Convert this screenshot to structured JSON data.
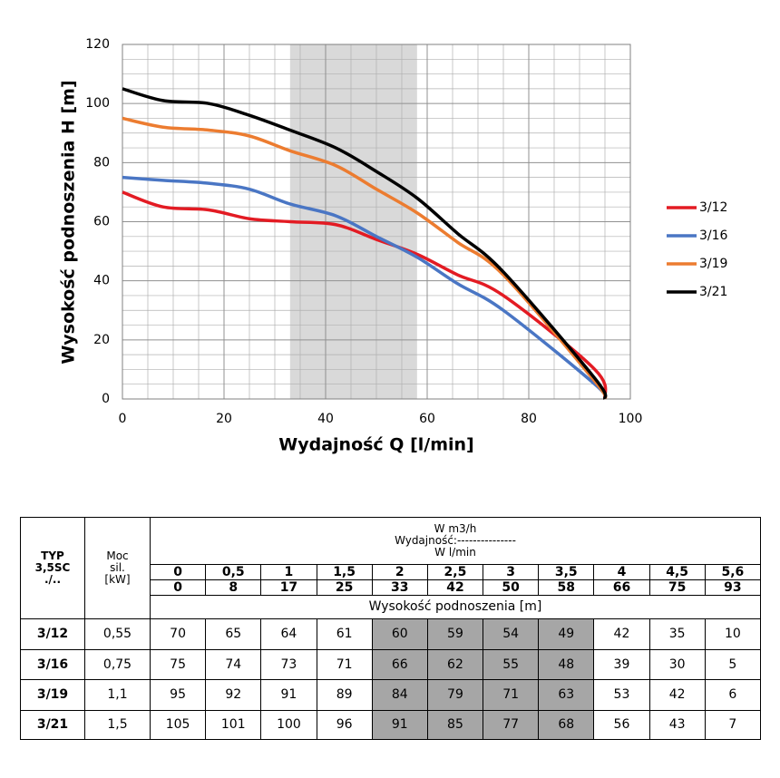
{
  "chart_data": {
    "type": "line",
    "x_label": "Wydajność Q [l/min]",
    "y_label": "Wysokość podnoszenia H [m]",
    "x": [
      0,
      8,
      17,
      25,
      33,
      42,
      50,
      58,
      66,
      75,
      93,
      95
    ],
    "series": [
      {
        "name": "3/12",
        "color": "#e31b23",
        "values": [
          70,
          65,
          64,
          61,
          60,
          59,
          54,
          49,
          42,
          35,
          10,
          0
        ]
      },
      {
        "name": "3/16",
        "color": "#4a76c4",
        "values": [
          75,
          74,
          73,
          71,
          66,
          62,
          55,
          48,
          39,
          30,
          5,
          0
        ]
      },
      {
        "name": "3/19",
        "color": "#ec7c30",
        "values": [
          95,
          92,
          91,
          89,
          84,
          79,
          71,
          63,
          53,
          42,
          6,
          0
        ]
      },
      {
        "name": "3/21",
        "color": "#000000",
        "values": [
          105,
          101,
          100,
          96,
          91,
          85,
          77,
          68,
          56,
          43,
          7,
          0
        ]
      }
    ],
    "xlim": [
      0,
      100
    ],
    "ylim": [
      0,
      120
    ],
    "xticks": [
      0,
      20,
      40,
      60,
      80,
      100
    ],
    "yticks": [
      0,
      20,
      40,
      60,
      80,
      100,
      120
    ],
    "grid": true,
    "minor_grid": true,
    "legend": "right",
    "highlight": {
      "x": [
        33,
        58
      ],
      "color": "#d9d9d9"
    }
  },
  "table": {
    "typ_header": [
      "TYP",
      "3,5SC",
      "./.."
    ],
    "power_header": [
      "Moc",
      "sil.",
      "[kW]"
    ],
    "flow_header": [
      "W m3/h",
      "Wydajność:---------------",
      "W l/min"
    ],
    "flow_m3h": [
      "0",
      "0,5",
      "1",
      "1,5",
      "2",
      "2,5",
      "3",
      "3,5",
      "4",
      "4,5",
      "5,6"
    ],
    "flow_lmin": [
      "0",
      "8",
      "17",
      "25",
      "33",
      "42",
      "50",
      "58",
      "66",
      "75",
      "93"
    ],
    "head_header": "Wysokość podnoszenia [m]",
    "rows": [
      [
        "3/12",
        "0,55",
        "70",
        "65",
        "64",
        "61",
        "60",
        "59",
        "54",
        "49",
        "42",
        "35",
        "10"
      ],
      [
        "3/16",
        "0,75",
        "75",
        "74",
        "73",
        "71",
        "66",
        "62",
        "55",
        "48",
        "39",
        "30",
        "5"
      ],
      [
        "3/19",
        "1,1",
        "95",
        "92",
        "91",
        "89",
        "84",
        "79",
        "71",
        "63",
        "53",
        "42",
        "6"
      ],
      [
        "3/21",
        "1,5",
        "105",
        "101",
        "100",
        "96",
        "91",
        "85",
        "77",
        "68",
        "56",
        "43",
        "7"
      ]
    ],
    "highlight_columns": [
      4,
      5,
      6,
      7
    ],
    "highlight_color": "#a6a6a6"
  }
}
